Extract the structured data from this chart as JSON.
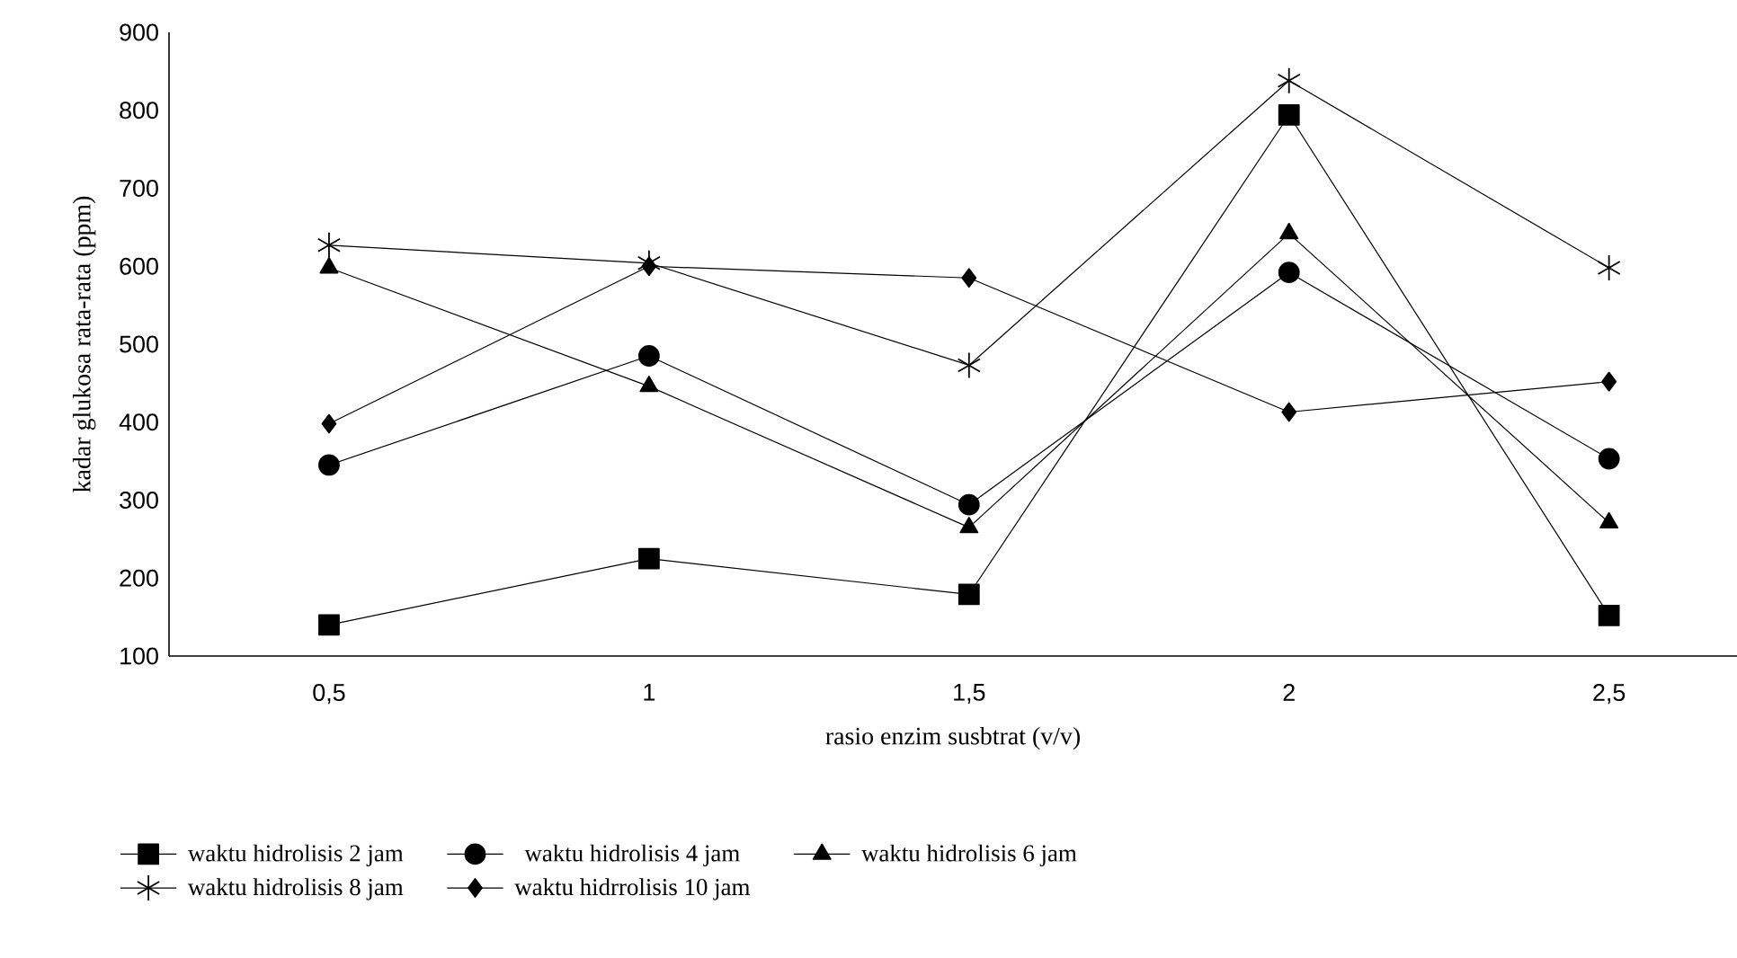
{
  "chart_data": {
    "type": "line",
    "xlabel": "rasio enzim susbtrat (v/v)",
    "ylabel": "kadar glukosa rata-rata (ppm)",
    "categories": [
      "0,5",
      "1",
      "1,5",
      "2",
      "2,5"
    ],
    "ylim": [
      100,
      900
    ],
    "yticks": [
      100,
      200,
      300,
      400,
      500,
      600,
      700,
      800,
      900
    ],
    "grid": false,
    "legend": "bottom",
    "line_style": "solid",
    "series": [
      {
        "name": "waktu hidrolisis 2 jam",
        "color": "#000000",
        "marker": "square",
        "values": [
          140,
          225,
          179,
          794,
          152
        ]
      },
      {
        "name": "waktu hidrolisis 4 jam",
        "color": "#000000",
        "marker": "circle",
        "values": [
          345,
          485,
          294,
          592,
          353
        ]
      },
      {
        "name": "waktu hidrolisis 6 jam",
        "color": "#000000",
        "marker": "triangle",
        "values": [
          598,
          446,
          265,
          642,
          271
        ]
      },
      {
        "name": "waktu hidrolisis 8 jam",
        "color": "#000000",
        "marker": "cross",
        "values": [
          627,
          604,
          473,
          838,
          598
        ]
      },
      {
        "name": "waktu hidrrolisis 10 jam",
        "color": "#000000",
        "marker": "diamond",
        "values": [
          398,
          600,
          585,
          413,
          452
        ]
      }
    ]
  }
}
